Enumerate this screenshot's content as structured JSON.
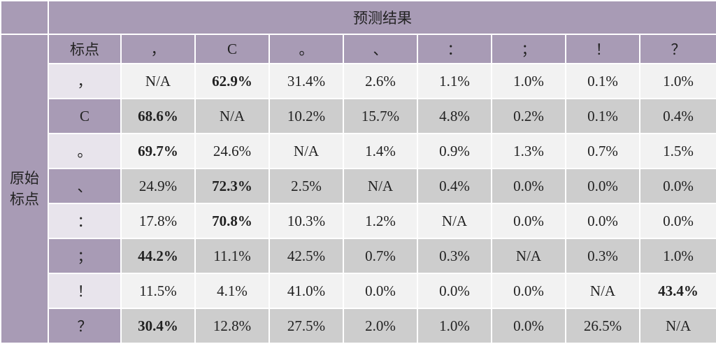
{
  "chart_data": {
    "type": "table",
    "header_top": "预测结果",
    "header_side": "原始\n标点",
    "corner_label": "标点",
    "columns": [
      "，",
      "C",
      "。",
      "、",
      "：",
      "；",
      "！",
      "？"
    ],
    "rows": [
      {
        "label": "，",
        "values": [
          "N/A",
          "62.9%",
          "31.4%",
          "2.6%",
          "1.1%",
          "1.0%",
          "0.1%",
          "1.0%"
        ],
        "bold_index": 1
      },
      {
        "label": "C",
        "values": [
          "68.6%",
          "N/A",
          "10.2%",
          "15.7%",
          "4.8%",
          "0.2%",
          "0.1%",
          "0.4%"
        ],
        "bold_index": 0
      },
      {
        "label": "。",
        "values": [
          "69.7%",
          "24.6%",
          "N/A",
          "1.4%",
          "0.9%",
          "1.3%",
          "0.7%",
          "1.5%"
        ],
        "bold_index": 0
      },
      {
        "label": "、",
        "values": [
          "24.9%",
          "72.3%",
          "2.5%",
          "N/A",
          "0.4%",
          "0.0%",
          "0.0%",
          "0.0%"
        ],
        "bold_index": 1
      },
      {
        "label": "：",
        "values": [
          "17.8%",
          "70.8%",
          "10.3%",
          "1.2%",
          "N/A",
          "0.0%",
          "0.0%",
          "0.0%"
        ],
        "bold_index": 1
      },
      {
        "label": "；",
        "values": [
          "44.2%",
          "11.1%",
          "42.5%",
          "0.7%",
          "0.3%",
          "N/A",
          "0.3%",
          "1.0%"
        ],
        "bold_index": 0
      },
      {
        "label": "！",
        "values": [
          "11.5%",
          "4.1%",
          "41.0%",
          "0.0%",
          "0.0%",
          "0.0%",
          "N/A",
          "43.4%"
        ],
        "bold_index": 7
      },
      {
        "label": "？",
        "values": [
          "30.4%",
          "12.8%",
          "27.5%",
          "2.0%",
          "1.0%",
          "0.0%",
          "26.5%",
          "N/A"
        ],
        "bold_index": 0
      }
    ]
  }
}
